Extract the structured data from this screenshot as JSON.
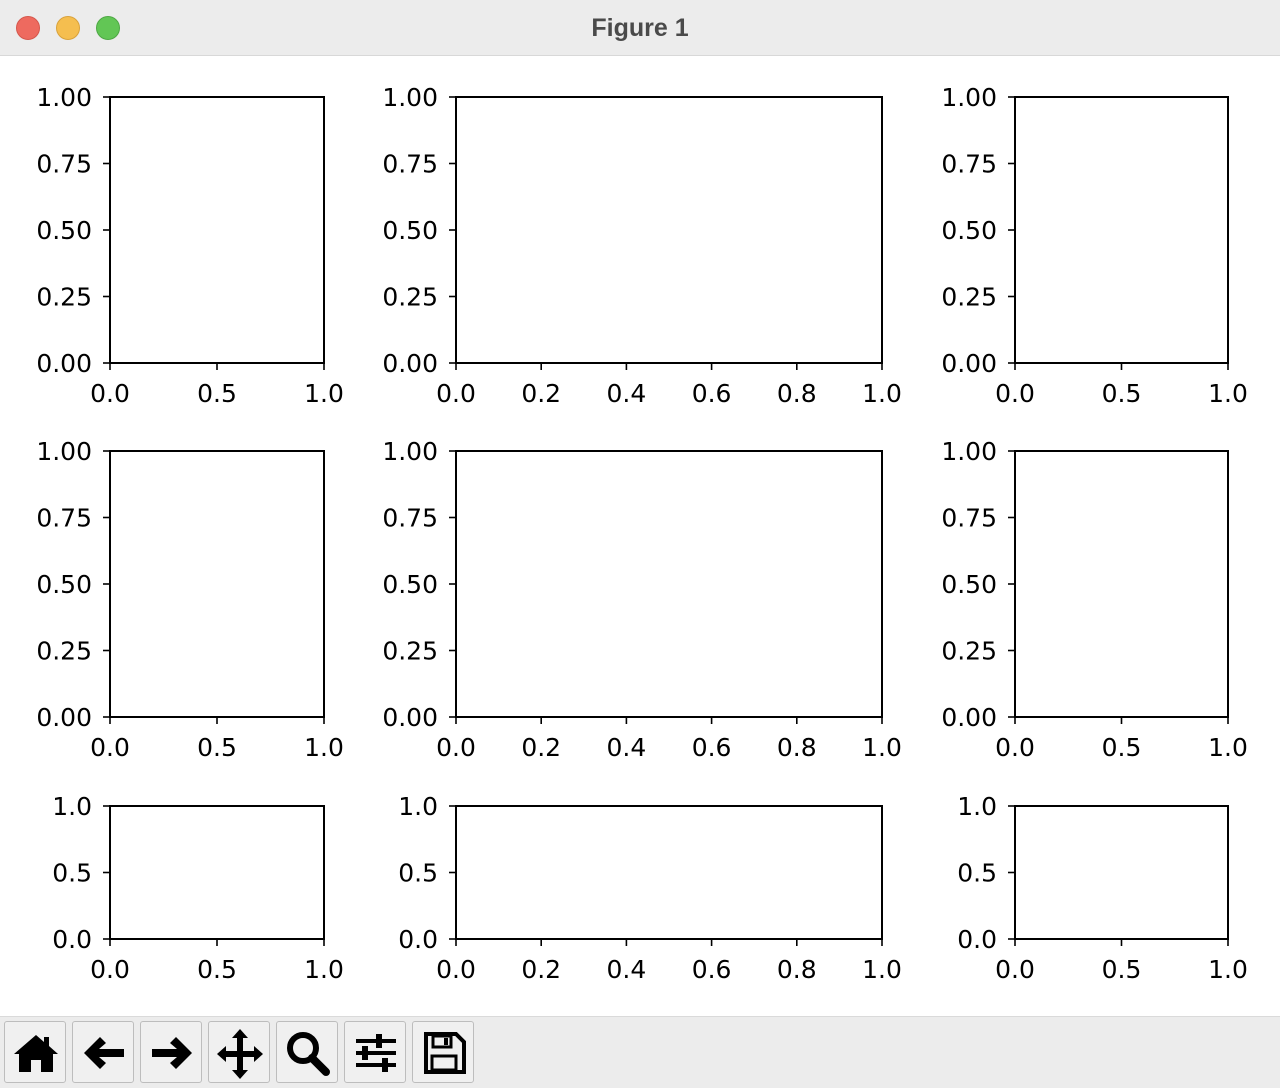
{
  "window": {
    "title": "Figure 1"
  },
  "toolbar": {
    "buttons": [
      {
        "name": "home",
        "icon": "home-icon"
      },
      {
        "name": "back",
        "icon": "arrow-left-icon"
      },
      {
        "name": "forward",
        "icon": "arrow-right-icon"
      },
      {
        "name": "pan",
        "icon": "move-icon"
      },
      {
        "name": "zoom",
        "icon": "magnifier-icon"
      },
      {
        "name": "configure-subplots",
        "icon": "sliders-icon"
      },
      {
        "name": "save",
        "icon": "floppy-disk-icon"
      }
    ]
  },
  "chart_data": [
    {
      "type": "line",
      "row": 1,
      "col": 1,
      "xlim": [
        0,
        1
      ],
      "ylim": [
        0,
        1
      ],
      "xticks": [
        "0.0",
        "0.5",
        "1.0"
      ],
      "yticks": [
        "0.00",
        "0.25",
        "0.50",
        "0.75",
        "1.00"
      ],
      "series": []
    },
    {
      "type": "line",
      "row": 1,
      "col": 2,
      "xlim": [
        0,
        1
      ],
      "ylim": [
        0,
        1
      ],
      "xticks": [
        "0.0",
        "0.2",
        "0.4",
        "0.6",
        "0.8",
        "1.0"
      ],
      "yticks": [
        "0.00",
        "0.25",
        "0.50",
        "0.75",
        "1.00"
      ],
      "series": []
    },
    {
      "type": "line",
      "row": 1,
      "col": 3,
      "xlim": [
        0,
        1
      ],
      "ylim": [
        0,
        1
      ],
      "xticks": [
        "0.0",
        "0.5",
        "1.0"
      ],
      "yticks": [
        "0.00",
        "0.25",
        "0.50",
        "0.75",
        "1.00"
      ],
      "series": []
    },
    {
      "type": "line",
      "row": 2,
      "col": 1,
      "xlim": [
        0,
        1
      ],
      "ylim": [
        0,
        1
      ],
      "xticks": [
        "0.0",
        "0.5",
        "1.0"
      ],
      "yticks": [
        "0.00",
        "0.25",
        "0.50",
        "0.75",
        "1.00"
      ],
      "series": []
    },
    {
      "type": "line",
      "row": 2,
      "col": 2,
      "xlim": [
        0,
        1
      ],
      "ylim": [
        0,
        1
      ],
      "xticks": [
        "0.0",
        "0.2",
        "0.4",
        "0.6",
        "0.8",
        "1.0"
      ],
      "yticks": [
        "0.00",
        "0.25",
        "0.50",
        "0.75",
        "1.00"
      ],
      "series": []
    },
    {
      "type": "line",
      "row": 2,
      "col": 3,
      "xlim": [
        0,
        1
      ],
      "ylim": [
        0,
        1
      ],
      "xticks": [
        "0.0",
        "0.5",
        "1.0"
      ],
      "yticks": [
        "0.00",
        "0.25",
        "0.50",
        "0.75",
        "1.00"
      ],
      "series": []
    },
    {
      "type": "line",
      "row": 3,
      "col": 1,
      "xlim": [
        0,
        1
      ],
      "ylim": [
        0,
        1
      ],
      "xticks": [
        "0.0",
        "0.5",
        "1.0"
      ],
      "yticks": [
        "0.0",
        "0.5",
        "1.0"
      ],
      "series": []
    },
    {
      "type": "line",
      "row": 3,
      "col": 2,
      "xlim": [
        0,
        1
      ],
      "ylim": [
        0,
        1
      ],
      "xticks": [
        "0.0",
        "0.2",
        "0.4",
        "0.6",
        "0.8",
        "1.0"
      ],
      "yticks": [
        "0.0",
        "0.5",
        "1.0"
      ],
      "series": []
    },
    {
      "type": "line",
      "row": 3,
      "col": 3,
      "xlim": [
        0,
        1
      ],
      "ylim": [
        0,
        1
      ],
      "xticks": [
        "0.0",
        "0.5",
        "1.0"
      ],
      "yticks": [
        "0.0",
        "0.5",
        "1.0"
      ],
      "series": []
    }
  ]
}
